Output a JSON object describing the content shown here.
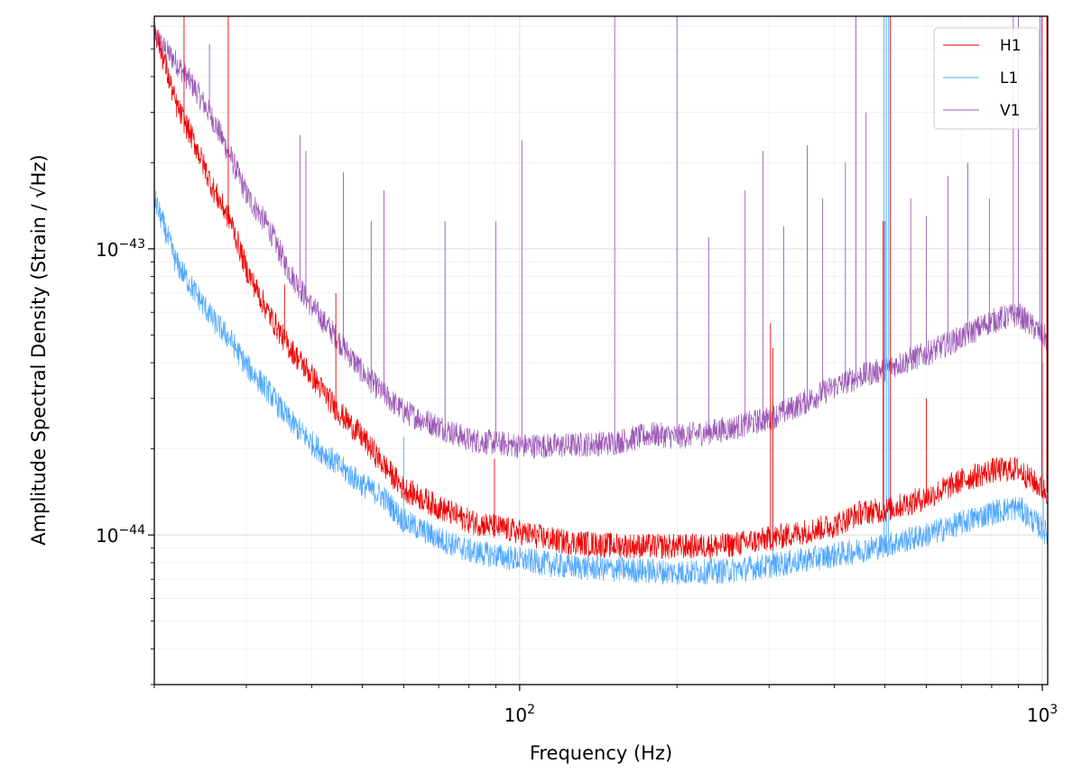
{
  "chart_data": {
    "type": "line",
    "xlabel": "Frequency (Hz)",
    "ylabel": "Amplitude Spectral Density (Strain / √Hz)",
    "xscale": "log",
    "yscale": "log",
    "xlim": [
      20,
      1024
    ],
    "ylim": [
      3e-45,
      6.5e-43
    ],
    "grid": true,
    "legend_position": "top-right",
    "x_ticks": [
      {
        "value": 100,
        "base": "10",
        "exp": "2"
      },
      {
        "value": 1000,
        "base": "10",
        "exp": "3"
      }
    ],
    "y_ticks": [
      {
        "value": 1e-44,
        "base": "10",
        "exp": "−44"
      },
      {
        "value": 1e-43,
        "base": "10",
        "exp": "−43"
      }
    ],
    "series": [
      {
        "name": "H1",
        "color": "#ee0000",
        "baseline": [
          [
            20,
            6e-43
          ],
          [
            22,
            3.2e-43
          ],
          [
            24,
            2.3e-43
          ],
          [
            26,
            1.6e-43
          ],
          [
            28,
            1.25e-43
          ],
          [
            30,
            8.5e-44
          ],
          [
            33,
            6e-44
          ],
          [
            36,
            4.6e-44
          ],
          [
            40,
            3.6e-44
          ],
          [
            45,
            2.7e-44
          ],
          [
            50,
            2.2e-44
          ],
          [
            55,
            1.75e-44
          ],
          [
            60,
            1.45e-44
          ],
          [
            70,
            1.25e-44
          ],
          [
            80,
            1.12e-44
          ],
          [
            100,
            1.02e-44
          ],
          [
            120,
            9.5e-45
          ],
          [
            150,
            9.2e-45
          ],
          [
            200,
            9.1e-45
          ],
          [
            250,
            9.2e-45
          ],
          [
            300,
            9.7e-45
          ],
          [
            400,
            1.08e-44
          ],
          [
            450,
            1.2e-44
          ],
          [
            500,
            1.22e-44
          ],
          [
            600,
            1.35e-44
          ],
          [
            700,
            1.55e-44
          ],
          [
            800,
            1.68e-44
          ],
          [
            900,
            1.7e-44
          ],
          [
            1000,
            1.45e-44
          ],
          [
            1024,
            1.4e-44
          ]
        ],
        "spikes": [
          [
            22.8,
            6.5e-43
          ],
          [
            27.7,
            6.5e-43
          ],
          [
            35.5,
            7.5e-44
          ],
          [
            44.5,
            7e-44
          ],
          [
            46.5,
            2.7e-44
          ],
          [
            89.5,
            1.85e-44
          ],
          [
            302,
            5.5e-44
          ],
          [
            305,
            4.5e-44
          ],
          [
            496,
            1.25e-43
          ],
          [
            512,
            6.5e-43
          ],
          [
            600,
            3e-44
          ],
          [
            998,
            6.5e-43
          ],
          [
            1020,
            6.5e-43
          ]
        ]
      },
      {
        "name": "L1",
        "color": "#4ea7ff",
        "baseline": [
          [
            20,
            1.5e-43
          ],
          [
            22,
            9e-44
          ],
          [
            24,
            7e-44
          ],
          [
            26,
            5.6e-44
          ],
          [
            28,
            4.8e-44
          ],
          [
            30,
            3.9e-44
          ],
          [
            33,
            3.2e-44
          ],
          [
            36,
            2.55e-44
          ],
          [
            40,
            2.1e-44
          ],
          [
            45,
            1.75e-44
          ],
          [
            50,
            1.5e-44
          ],
          [
            55,
            1.35e-44
          ],
          [
            60,
            1.12e-44
          ],
          [
            70,
            9.7e-45
          ],
          [
            80,
            8.8e-45
          ],
          [
            100,
            8.2e-45
          ],
          [
            120,
            7.8e-45
          ],
          [
            150,
            7.6e-45
          ],
          [
            200,
            7.4e-45
          ],
          [
            250,
            7.5e-45
          ],
          [
            300,
            7.8e-45
          ],
          [
            400,
            8.5e-45
          ],
          [
            500,
            9.2e-45
          ],
          [
            600,
            1e-44
          ],
          [
            700,
            1.1e-44
          ],
          [
            800,
            1.2e-44
          ],
          [
            900,
            1.25e-44
          ],
          [
            1000,
            1.05e-44
          ],
          [
            1024,
            1e-44
          ]
        ],
        "spikes": [
          [
            60,
            2.2e-44
          ],
          [
            305,
            3e-44
          ],
          [
            498,
            6.5e-43
          ],
          [
            503,
            6.5e-43
          ],
          [
            508,
            6.5e-43
          ],
          [
            1004,
            4e-44
          ]
        ]
      },
      {
        "name": "V1",
        "color": "#9b59b6",
        "baseline": [
          [
            20,
            5.5e-43
          ],
          [
            22,
            4.5e-43
          ],
          [
            24,
            3.6e-43
          ],
          [
            26,
            2.8e-43
          ],
          [
            28,
            2.1e-43
          ],
          [
            30,
            1.55e-43
          ],
          [
            33,
            1.2e-43
          ],
          [
            36,
            8.5e-44
          ],
          [
            40,
            6.3e-44
          ],
          [
            45,
            4.8e-44
          ],
          [
            50,
            3.7e-44
          ],
          [
            55,
            3.1e-44
          ],
          [
            60,
            2.7e-44
          ],
          [
            70,
            2.4e-44
          ],
          [
            80,
            2.15e-44
          ],
          [
            100,
            2.05e-44
          ],
          [
            120,
            2.05e-44
          ],
          [
            150,
            2.1e-44
          ],
          [
            180,
            2.25e-44
          ],
          [
            200,
            2.2e-44
          ],
          [
            250,
            2.35e-44
          ],
          [
            300,
            2.55e-44
          ],
          [
            350,
            2.9e-44
          ],
          [
            400,
            3.3e-44
          ],
          [
            450,
            3.6e-44
          ],
          [
            500,
            3.8e-44
          ],
          [
            600,
            4.3e-44
          ],
          [
            700,
            4.9e-44
          ],
          [
            800,
            5.6e-44
          ],
          [
            900,
            5.9e-44
          ],
          [
            1000,
            5e-44
          ],
          [
            1024,
            4.8e-44
          ]
        ],
        "spikes": [
          [
            25.5,
            5.2e-43
          ],
          [
            38,
            2.5e-43
          ],
          [
            39,
            2.2e-43
          ],
          [
            46,
            1.85e-43
          ],
          [
            52,
            1.25e-43
          ],
          [
            55,
            1.6e-43
          ],
          [
            72,
            1.25e-43
          ],
          [
            90,
            1.25e-43
          ],
          [
            101,
            2.4e-43
          ],
          [
            152,
            6.5e-43
          ],
          [
            200,
            6.5e-43
          ],
          [
            230,
            1.1e-43
          ],
          [
            270,
            1.6e-43
          ],
          [
            292,
            2.2e-43
          ],
          [
            320,
            1.2e-43
          ],
          [
            355,
            2.3e-43
          ],
          [
            380,
            1.5e-43
          ],
          [
            420,
            2e-43
          ],
          [
            440,
            6.5e-43
          ],
          [
            460,
            3e-43
          ],
          [
            500,
            1.25e-43
          ],
          [
            560,
            1.5e-43
          ],
          [
            600,
            1.3e-43
          ],
          [
            660,
            1.8e-43
          ],
          [
            720,
            2e-43
          ],
          [
            792,
            1.5e-43
          ],
          [
            880,
            6.5e-43
          ],
          [
            900,
            6.5e-43
          ],
          [
            990,
            6.5e-43
          ]
        ]
      }
    ]
  }
}
